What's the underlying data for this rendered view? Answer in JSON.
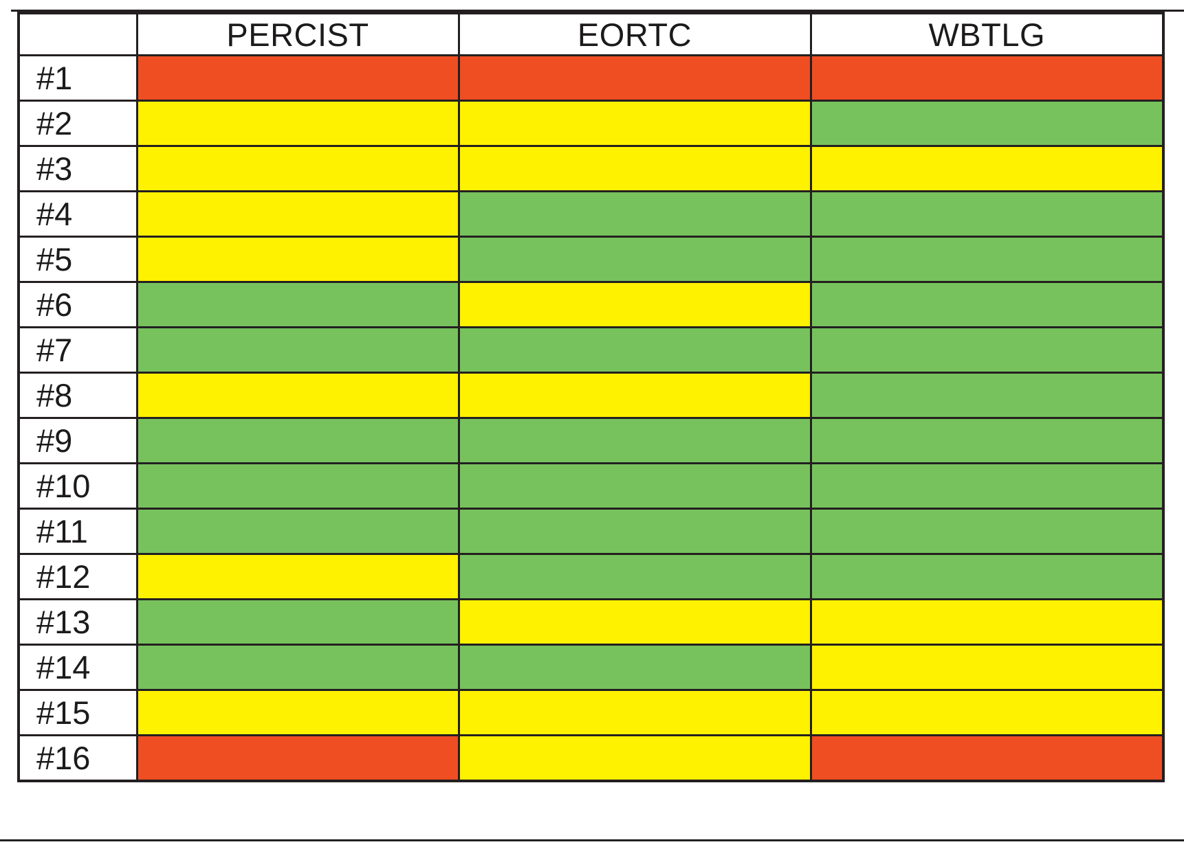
{
  "chart_data": {
    "type": "heatmap",
    "columns": [
      "PERCIST",
      "EORTC",
      "WBTLG"
    ],
    "rows": [
      "#1",
      "#2",
      "#3",
      "#4",
      "#5",
      "#6",
      "#7",
      "#8",
      "#9",
      "#10",
      "#11",
      "#12",
      "#13",
      "#14",
      "#15",
      "#16"
    ],
    "values": [
      [
        "red",
        "red",
        "red"
      ],
      [
        "yellow",
        "yellow",
        "green"
      ],
      [
        "yellow",
        "yellow",
        "yellow"
      ],
      [
        "yellow",
        "green",
        "green"
      ],
      [
        "yellow",
        "green",
        "green"
      ],
      [
        "green",
        "yellow",
        "green"
      ],
      [
        "green",
        "green",
        "green"
      ],
      [
        "yellow",
        "yellow",
        "green"
      ],
      [
        "green",
        "green",
        "green"
      ],
      [
        "green",
        "green",
        "green"
      ],
      [
        "green",
        "green",
        "green"
      ],
      [
        "yellow",
        "green",
        "green"
      ],
      [
        "green",
        "yellow",
        "yellow"
      ],
      [
        "green",
        "green",
        "yellow"
      ],
      [
        "yellow",
        "yellow",
        "yellow"
      ],
      [
        "red",
        "yellow",
        "red"
      ]
    ],
    "color_legend": {
      "red": "#EF4E23",
      "yellow": "#FFF200",
      "green": "#77C25D"
    },
    "layout": {
      "grid": "on",
      "border_color": "#231F20",
      "background": "#FFFFFF"
    }
  }
}
